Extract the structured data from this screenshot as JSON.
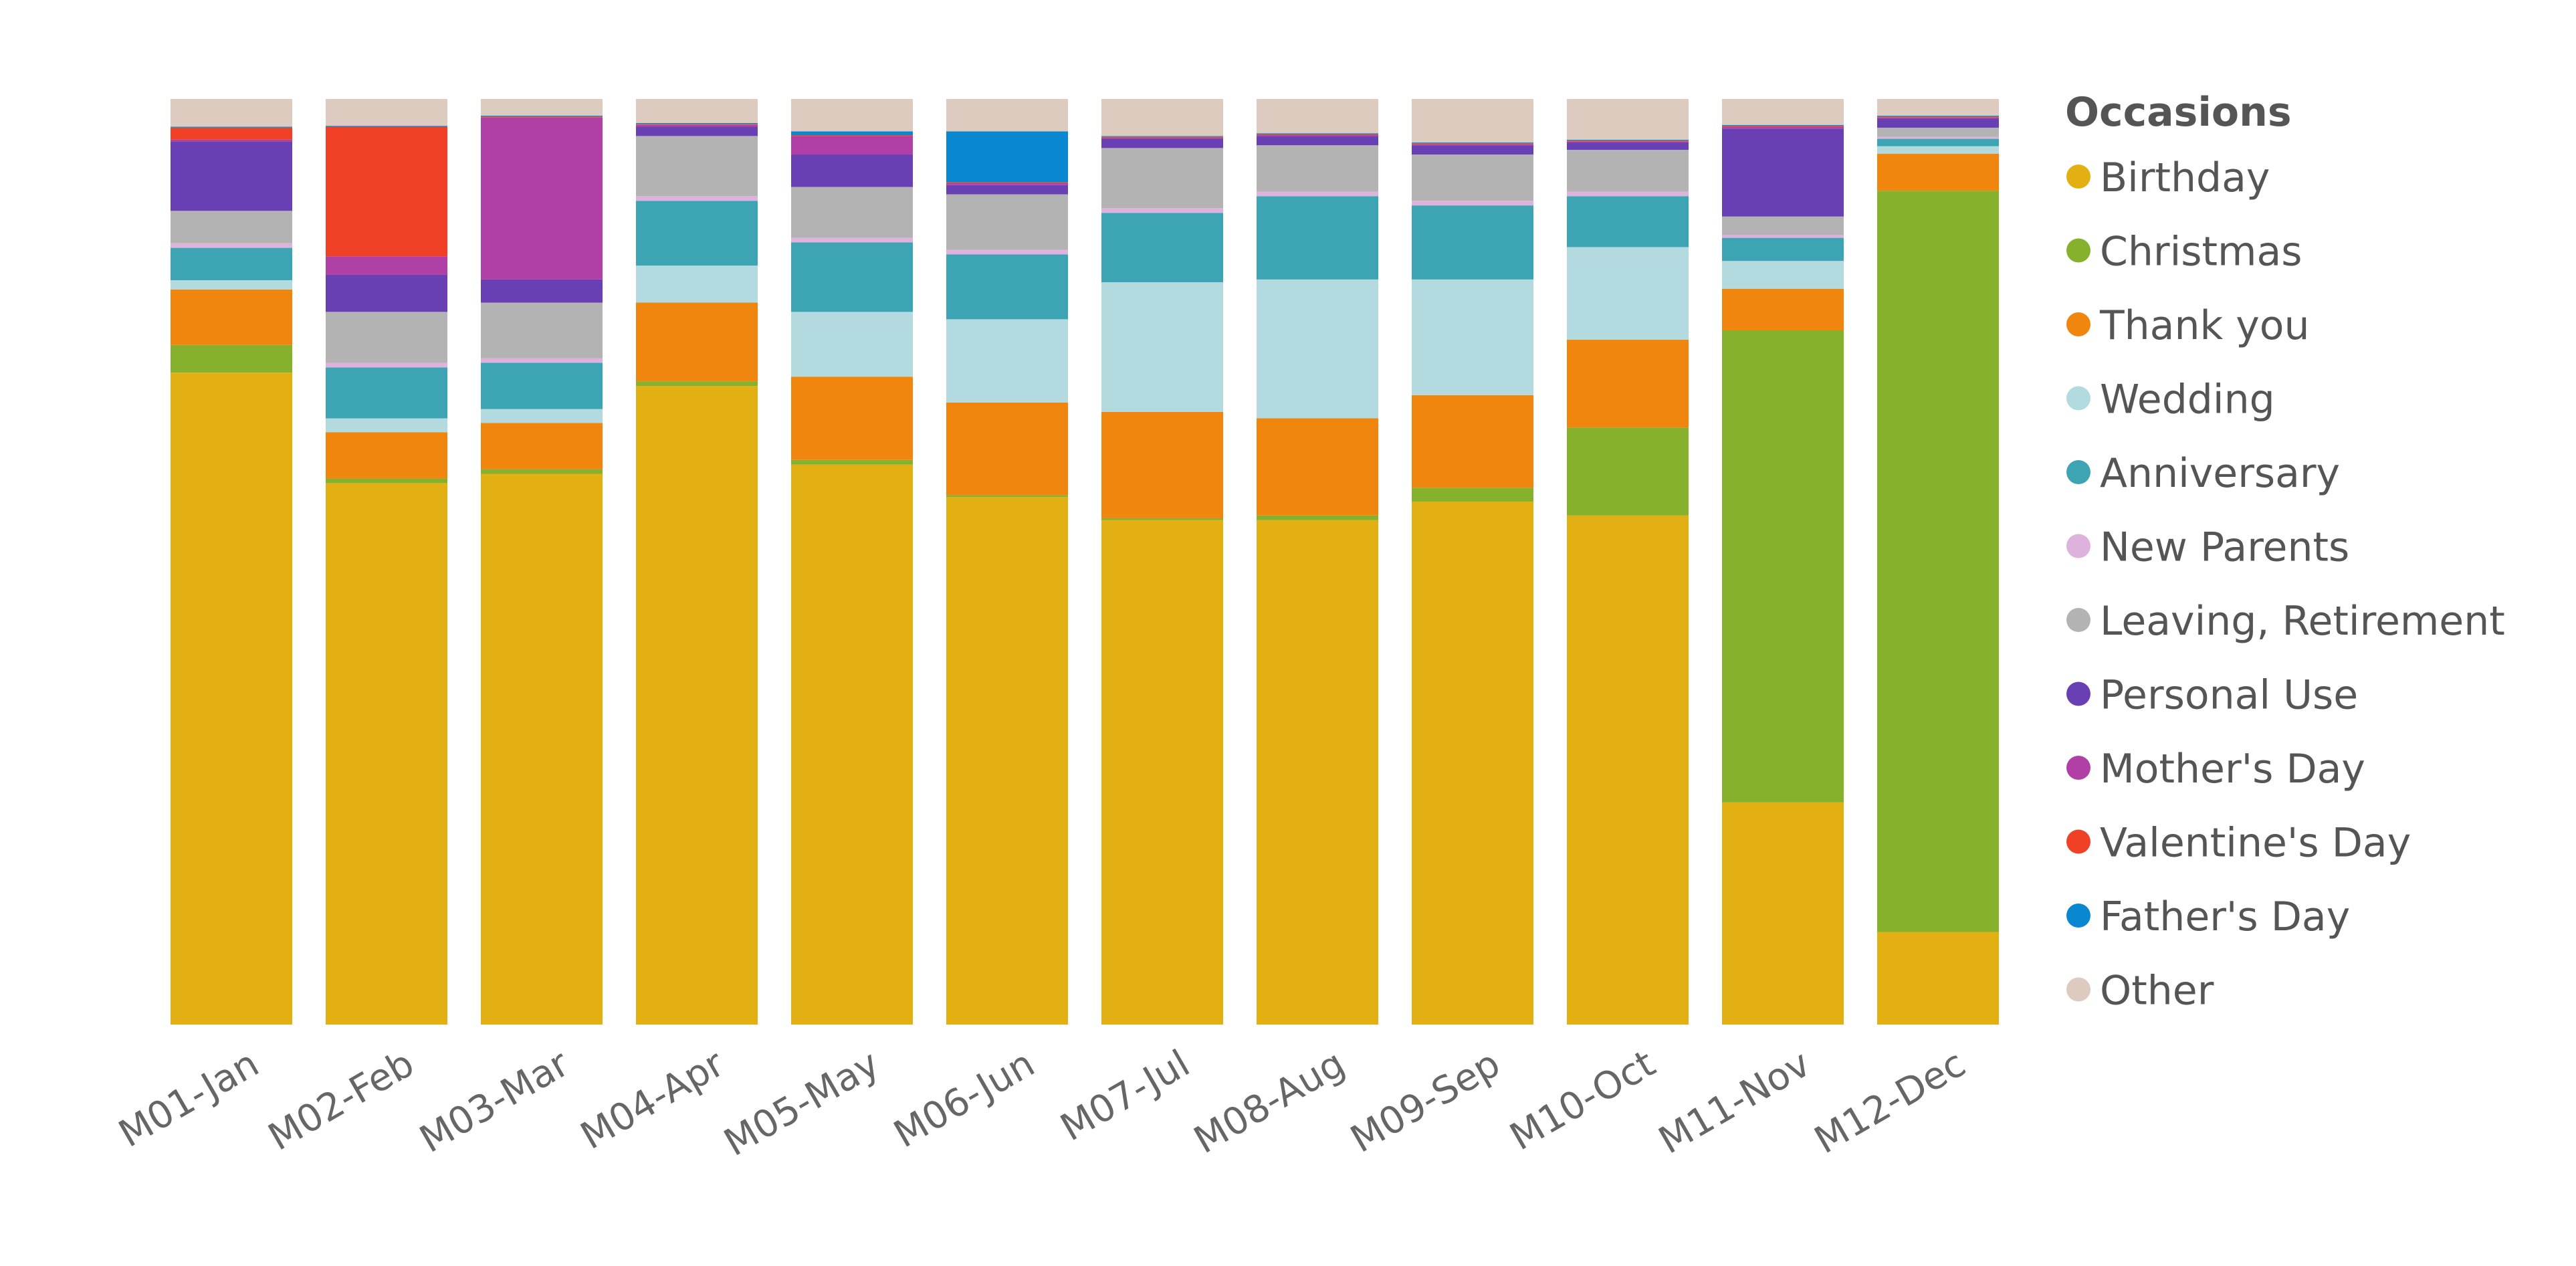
{
  "chart_data": {
    "type": "bar",
    "stacked": true,
    "normalized": true,
    "title": "",
    "xlabel": "",
    "ylabel": "",
    "ylim": [
      0,
      100
    ],
    "grid": false,
    "legend_position": "right",
    "legend_title": "Occasions",
    "categories": [
      "M01-Jan",
      "M02-Feb",
      "M03-Mar",
      "M04-Apr",
      "M05-May",
      "M06-Jun",
      "M07-Jul",
      "M08-Aug",
      "M09-Sep",
      "M10-Oct",
      "M11-Nov",
      "M12-Dec"
    ],
    "series": [
      {
        "name": "Birthday",
        "color": "#E3B013",
        "values": [
          70.5,
          58.5,
          59.5,
          69.0,
          60.5,
          57.0,
          54.5,
          54.5,
          56.5,
          55.0,
          24.0,
          10.0
        ]
      },
      {
        "name": "Christmas",
        "color": "#86B12C",
        "values": [
          3.0,
          0.5,
          0.5,
          0.5,
          0.5,
          0.2,
          0.2,
          0.5,
          1.5,
          9.5,
          51.0,
          80.0
        ]
      },
      {
        "name": "Thank you",
        "color": "#F0860E",
        "values": [
          6.0,
          5.0,
          5.0,
          8.5,
          9.0,
          10.0,
          11.5,
          10.5,
          10.0,
          9.5,
          4.5,
          4.0
        ]
      },
      {
        "name": "Wedding",
        "color": "#B3DBDF",
        "values": [
          1.0,
          1.5,
          1.5,
          4.0,
          7.0,
          9.0,
          14.0,
          15.0,
          12.5,
          10.0,
          3.0,
          0.8
        ]
      },
      {
        "name": "Anniversary",
        "color": "#3DA4B3",
        "values": [
          3.5,
          5.5,
          5.0,
          7.0,
          7.5,
          7.0,
          7.5,
          9.0,
          8.0,
          5.5,
          2.5,
          0.8
        ]
      },
      {
        "name": "New Parents",
        "color": "#DDB2DC",
        "values": [
          0.5,
          0.5,
          0.5,
          0.5,
          0.5,
          0.5,
          0.5,
          0.5,
          0.5,
          0.5,
          0.3,
          0.2
        ]
      },
      {
        "name": "Leaving, Retirement",
        "color": "#B3B3B3",
        "values": [
          3.5,
          5.5,
          6.0,
          6.5,
          5.5,
          6.0,
          6.5,
          5.0,
          5.0,
          4.5,
          2.0,
          1.0
        ]
      },
      {
        "name": "Personal Use",
        "color": "#6840B3",
        "values": [
          7.5,
          4.0,
          2.5,
          1.0,
          3.5,
          1.0,
          1.0,
          1.0,
          1.0,
          0.8,
          9.5,
          1.0
        ]
      },
      {
        "name": "Mother's Day",
        "color": "#B040A6",
        "values": [
          0.2,
          2.0,
          17.5,
          0.2,
          2.0,
          0.2,
          0.1,
          0.1,
          0.1,
          0.1,
          0.2,
          0.1
        ]
      },
      {
        "name": "Valentine's Day",
        "color": "#F04126",
        "values": [
          1.3,
          14.0,
          0.1,
          0.1,
          0.1,
          0.1,
          0.1,
          0.1,
          0.1,
          0.1,
          0.1,
          0.1
        ]
      },
      {
        "name": "Father's Day",
        "color": "#0A87D1",
        "values": [
          0.1,
          0.1,
          0.1,
          0.1,
          0.4,
          5.5,
          0.1,
          0.1,
          0.1,
          0.1,
          0.1,
          0.1
        ]
      },
      {
        "name": "Other",
        "color": "#DCCBBE",
        "values": [
          3.0,
          2.9,
          1.8,
          2.6,
          3.5,
          3.5,
          4.0,
          3.7,
          4.7,
          4.4,
          2.8,
          1.8
        ]
      }
    ]
  }
}
